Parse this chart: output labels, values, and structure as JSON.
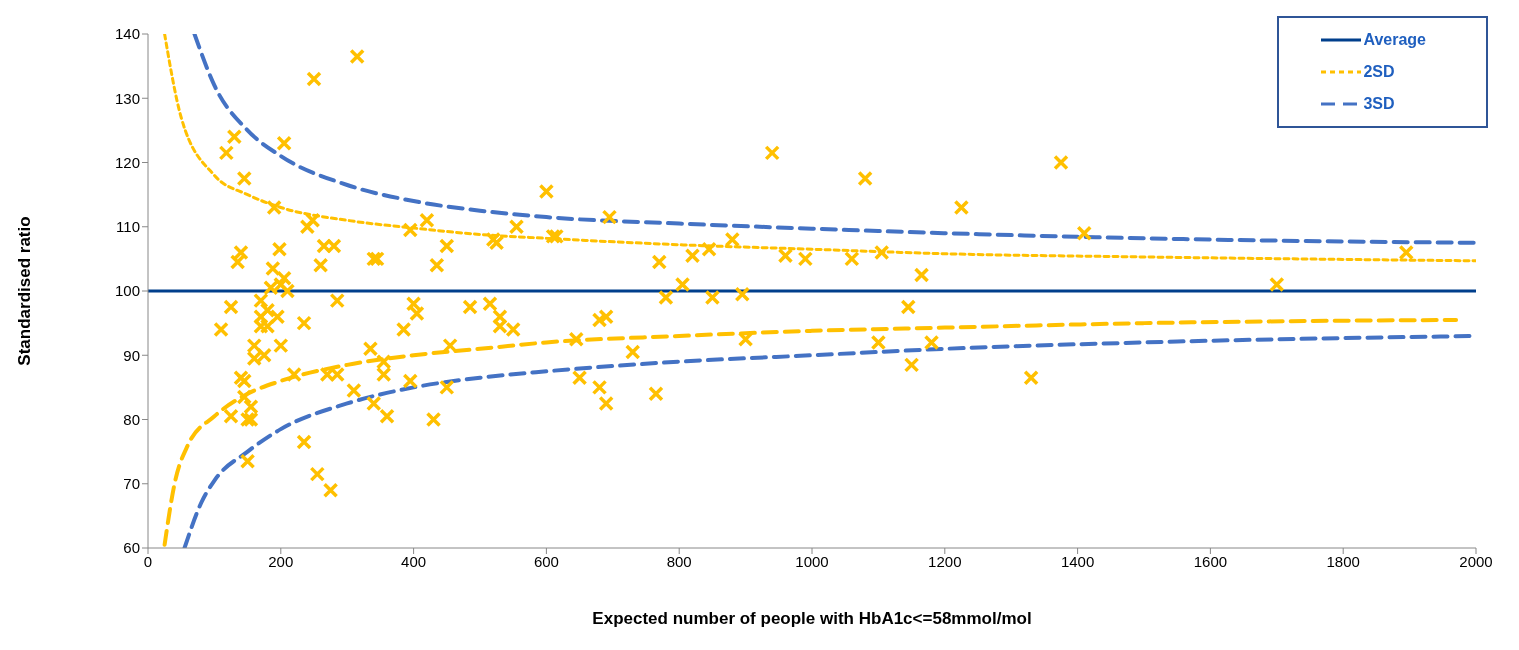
{
  "chart_data": {
    "type": "scatter",
    "xlabel": "Expected number of people with HbA1c<=58mmol/mol",
    "ylabel": "Standardised ratio",
    "xlim": [
      0,
      2000
    ],
    "xticks": [
      0,
      200,
      400,
      600,
      800,
      1000,
      1200,
      1400,
      1600,
      1800,
      2000
    ],
    "ylim": [
      60,
      140
    ],
    "yticks": [
      60,
      70,
      80,
      90,
      100,
      110,
      120,
      130,
      140
    ],
    "grid": false,
    "legend": "top right",
    "series": [
      {
        "color": "#ffc000",
        "marker": "cross",
        "x": [
          110,
          118,
          125,
          125,
          130,
          135,
          140,
          140,
          145,
          145,
          145,
          150,
          150,
          155,
          155,
          160,
          160,
          170,
          170,
          170,
          175,
          180,
          180,
          185,
          188,
          190,
          195,
          198,
          200,
          200,
          205,
          205,
          210,
          220,
          235,
          235,
          240,
          248,
          250,
          255,
          260,
          265,
          270,
          275,
          280,
          285,
          285,
          310,
          315,
          335,
          340,
          340,
          345,
          355,
          355,
          360,
          385,
          395,
          395,
          400,
          405,
          420,
          430,
          435,
          450,
          450,
          455,
          485,
          515,
          520,
          525,
          530,
          530,
          550,
          555,
          600,
          610,
          615,
          645,
          650,
          680,
          680,
          690,
          690,
          695,
          730,
          765,
          770,
          780,
          805,
          820,
          845,
          850,
          880,
          895,
          900,
          940,
          960,
          990,
          1060,
          1080,
          1100,
          1105,
          1145,
          1150,
          1165,
          1180,
          1225,
          1330,
          1375,
          1410,
          1700,
          1895
        ],
        "values": [
          94,
          121.5,
          97.5,
          80.5,
          124,
          104.5,
          106,
          86.5,
          86,
          117.5,
          83.5,
          80,
          73.5,
          80,
          82,
          91.5,
          89.5,
          98.5,
          96,
          94.5,
          90,
          97,
          94.5,
          100.5,
          103.5,
          113,
          96,
          106.5,
          91.5,
          101,
          123,
          102,
          100,
          87,
          95,
          76.5,
          110,
          111,
          133,
          71.5,
          104,
          107,
          87,
          69,
          107,
          87,
          98.5,
          84.5,
          136.5,
          91,
          82.5,
          105,
          105,
          89,
          87,
          80.5,
          94,
          109.5,
          86,
          98,
          96.5,
          111,
          80,
          104,
          107,
          85,
          91.5,
          97.5,
          98,
          108,
          107.5,
          96,
          94.5,
          94,
          110,
          115.5,
          108.5,
          108.5,
          92.5,
          86.5,
          95.5,
          85,
          82.5,
          96,
          111.5,
          90.5,
          84,
          104.5,
          99,
          101,
          105.5,
          106.5,
          99,
          108,
          99.5,
          92.5,
          121.5,
          105.5,
          105,
          105,
          117.5,
          92,
          106,
          97.5,
          88.5,
          102.5,
          92,
          113,
          86.5,
          120,
          109,
          101,
          106
        ]
      },
      {
        "type": "line",
        "name": "Average",
        "color": "#003f8c",
        "line_style": "solid",
        "x": [
          0,
          2000
        ],
        "values": [
          100,
          100
        ]
      },
      {
        "type": "line",
        "name": "2SD",
        "color": "#ffc000",
        "line_style": "dashed",
        "x": [
          25,
          50,
          100,
          150,
          200,
          300,
          400,
          500,
          600,
          800,
          1000,
          1200,
          1500,
          2000
        ],
        "values": [
          140,
          127,
          118,
          115,
          113,
          111,
          109.8,
          108.8,
          108.2,
          107.2,
          106.5,
          105.8,
          105.3,
          104.7
        ]
      },
      {
        "type": "line",
        "color": "#ffc000",
        "line_style": "dashed",
        "x": [
          25,
          40,
          60,
          100,
          150,
          200,
          300,
          400,
          500,
          600,
          800,
          1000,
          1200,
          1500,
          1970
        ],
        "values": [
          60.5,
          70,
          76,
          80.5,
          84,
          86,
          88.5,
          90,
          91,
          92,
          93,
          93.8,
          94.3,
          95,
          95.5
        ]
      },
      {
        "type": "line",
        "name": "3SD",
        "color": "#4472c4",
        "line_style": "dashed",
        "x": [
          70,
          100,
          150,
          200,
          300,
          400,
          500,
          600,
          800,
          1000,
          1200,
          1500,
          2000
        ],
        "values": [
          140,
          132,
          125,
          121,
          116.5,
          114,
          112.5,
          111.5,
          110.5,
          109.7,
          109,
          108.2,
          107.5
        ]
      },
      {
        "type": "line",
        "color": "#4472c4",
        "line_style": "dashed",
        "x": [
          55,
          80,
          100,
          150,
          200,
          300,
          400,
          500,
          600,
          800,
          1000,
          1200,
          1500,
          2000
        ],
        "values": [
          60,
          67,
          70.5,
          75,
          78.5,
          82.5,
          85,
          86.5,
          87.5,
          89,
          90,
          91,
          92,
          93
        ]
      }
    ]
  }
}
